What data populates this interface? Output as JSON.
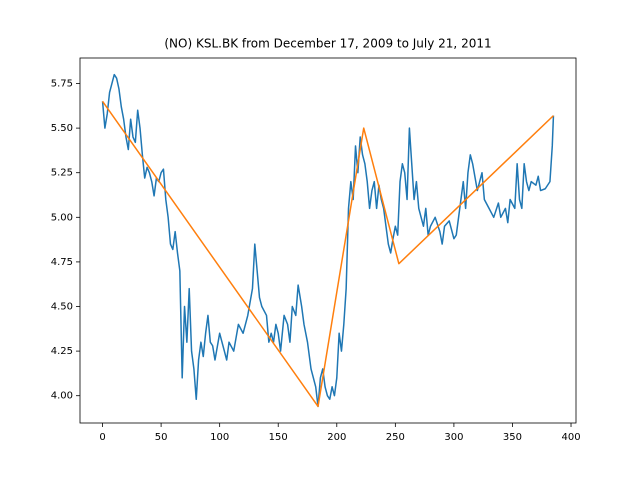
{
  "chart_data": {
    "type": "line",
    "title": "(NO) KSL.BK from December 17, 2009 to July 21, 2011",
    "series": [
      {
        "color": "#1f77b4",
        "x": [
          0,
          2,
          4,
          6,
          8,
          10,
          12,
          14,
          16,
          18,
          20,
          22,
          24,
          26,
          28,
          30,
          32,
          34,
          36,
          38,
          40,
          42,
          44,
          46,
          48,
          50,
          52,
          54,
          56,
          58,
          60,
          62,
          64,
          66,
          68,
          70,
          72,
          74,
          76,
          78,
          80,
          82,
          84,
          86,
          88,
          90,
          92,
          94,
          96,
          100,
          104,
          106,
          108,
          112,
          116,
          120,
          124,
          128,
          130,
          132,
          134,
          136,
          140,
          142,
          144,
          146,
          148,
          150,
          152,
          155,
          158,
          160,
          162,
          165,
          167,
          170,
          172,
          175,
          178,
          180,
          182,
          184,
          186,
          188,
          190,
          192,
          194,
          196,
          198,
          200,
          202,
          204,
          206,
          208,
          210,
          212,
          214,
          216,
          218,
          220,
          222,
          224,
          226,
          228,
          230,
          232,
          234,
          236,
          238,
          240,
          242,
          244,
          246,
          248,
          250,
          252,
          254,
          256,
          258,
          260,
          262,
          264,
          266,
          268,
          270,
          272,
          274,
          276,
          278,
          280,
          284,
          288,
          290,
          292,
          296,
          300,
          302,
          306,
          308,
          310,
          312,
          314,
          316,
          320,
          324,
          326,
          330,
          334,
          338,
          340,
          344,
          346,
          348,
          352,
          354,
          356,
          358,
          360,
          362,
          364,
          366,
          370,
          372,
          374,
          378,
          382,
          384,
          385
        ],
        "values": [
          5.65,
          5.5,
          5.58,
          5.7,
          5.75,
          5.8,
          5.78,
          5.72,
          5.62,
          5.55,
          5.45,
          5.38,
          5.55,
          5.45,
          5.42,
          5.6,
          5.5,
          5.35,
          5.22,
          5.28,
          5.25,
          5.2,
          5.12,
          5.22,
          5.2,
          5.25,
          5.27,
          5.1,
          5.0,
          4.85,
          4.82,
          4.92,
          4.8,
          4.7,
          4.1,
          4.5,
          4.3,
          4.6,
          4.25,
          4.15,
          3.98,
          4.2,
          4.3,
          4.22,
          4.35,
          4.45,
          4.3,
          4.28,
          4.2,
          4.35,
          4.25,
          4.2,
          4.3,
          4.25,
          4.4,
          4.35,
          4.45,
          4.6,
          4.85,
          4.7,
          4.55,
          4.5,
          4.45,
          4.3,
          4.35,
          4.3,
          4.4,
          4.35,
          4.25,
          4.45,
          4.4,
          4.3,
          4.5,
          4.45,
          4.62,
          4.5,
          4.4,
          4.3,
          4.15,
          4.1,
          4.05,
          3.94,
          4.1,
          4.15,
          4.05,
          4.0,
          3.98,
          4.05,
          4.0,
          4.1,
          4.35,
          4.25,
          4.4,
          4.6,
          5.05,
          5.2,
          5.1,
          5.4,
          5.25,
          5.45,
          5.35,
          5.3,
          5.2,
          5.05,
          5.15,
          5.2,
          5.05,
          5.18,
          5.1,
          5.05,
          4.95,
          4.85,
          4.8,
          4.88,
          4.95,
          4.9,
          5.2,
          5.3,
          5.25,
          5.1,
          5.5,
          5.3,
          5.1,
          5.2,
          5.05,
          5.0,
          4.95,
          5.05,
          4.9,
          4.95,
          5.0,
          4.92,
          4.85,
          4.95,
          4.98,
          4.88,
          4.9,
          5.1,
          5.2,
          5.05,
          5.25,
          5.35,
          5.3,
          5.15,
          5.25,
          5.1,
          5.05,
          5.0,
          5.08,
          5.0,
          5.05,
          4.97,
          5.1,
          5.05,
          5.3,
          5.1,
          5.05,
          5.3,
          5.2,
          5.15,
          5.2,
          5.18,
          5.23,
          5.15,
          5.16,
          5.2,
          5.4,
          5.57
        ]
      },
      {
        "color": "#ff7f0e",
        "x": [
          0,
          184,
          223,
          253,
          385
        ],
        "values": [
          5.65,
          3.94,
          5.5,
          4.74,
          5.57
        ]
      }
    ],
    "xlim": [
      -19.25,
      404.25
    ],
    "xticks": [
      0,
      50,
      100,
      150,
      200,
      250,
      300,
      350,
      400
    ],
    "ylim": [
      3.847,
      5.893
    ],
    "yticks": [
      {
        "value": 4,
        "label": "4.00"
      },
      {
        "value": 4.25,
        "label": "4.25"
      },
      {
        "value": 4.5,
        "label": "4.50"
      },
      {
        "value": 4.75,
        "label": "4.75"
      },
      {
        "value": 5,
        "label": "5.00"
      },
      {
        "value": 5.25,
        "label": "5.25"
      },
      {
        "value": 5.5,
        "label": "5.50"
      },
      {
        "value": 5.75,
        "label": "5.75"
      }
    ]
  }
}
